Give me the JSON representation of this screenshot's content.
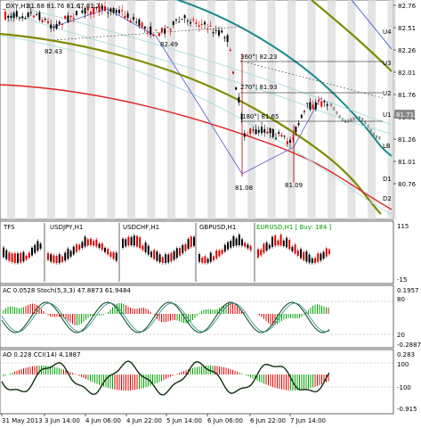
{
  "main": {
    "title": "_DXY,H1",
    "ohlc": "81.68 81.76 81.67 81.71",
    "current_price": "81.71",
    "price_axis": [
      "82.76",
      "82.51",
      "82.26",
      "82.01",
      "81.76",
      "81.51",
      "81.26",
      "81.01",
      "80.76"
    ],
    "level_labels": {
      "u4": "U4",
      "u3": "U3",
      "u2": "U2",
      "u1": "U1",
      "lb": "LB",
      "d1": "D1",
      "d2": "D2"
    },
    "annotations": {
      "a1": "82.43",
      "a2": "82.49",
      "a3": "360°| 82.23",
      "a4": "270°| 81.93",
      "a5": "180°| 81.65",
      "a6": "81.08",
      "a7": "81.09"
    }
  },
  "mini": {
    "labels": [
      "TFS",
      "USDJPY,H1",
      "USDCHF,H1",
      "GBPUSD,H1",
      "EURUSD,H1 [ Buy: 184 ]"
    ],
    "axis": [
      "115",
      "-15"
    ]
  },
  "ac_panel": {
    "label": "AC 0.0528  Stoch(5,3,3) 47.8873 61.9484",
    "axis": [
      "0.1957",
      "80",
      "20",
      "-0.2887"
    ]
  },
  "ao_panel": {
    "label": "AO 0.228  CCI(14) 4.1887",
    "axis": [
      "0.283",
      "100",
      "-100",
      "-0.915"
    ]
  },
  "time_axis": [
    "31 May 2013",
    "3 Jun 14:00",
    "4 Jun 06:00",
    "4 Jun 22:00",
    "5 Jun 14:00",
    "6 Jun 06:00",
    "6 Jun 22:00",
    "7 Jun 14:00"
  ],
  "colors": {
    "bull": "#000000",
    "bear": "#e00000",
    "teal": "#1a8c8c",
    "olive": "#7f8c00",
    "red_ma": "#e02020",
    "grid_band": "#d8d8d8",
    "buy": "#00a000",
    "ghost": "#909090"
  }
}
